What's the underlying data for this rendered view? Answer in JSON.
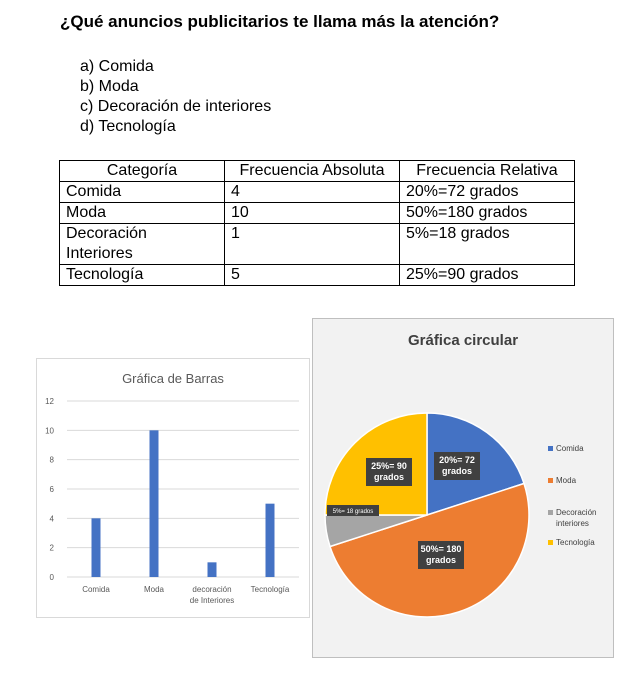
{
  "question": "¿Qué anuncios publicitarios te llama más la atención?",
  "options": [
    "a) Comida",
    "b) Moda",
    "c) Decoración de interiores",
    "d) Tecnología"
  ],
  "table": {
    "headers": [
      "Categoría",
      "Frecuencia Absoluta",
      "Frecuencia Relativa"
    ],
    "rows": [
      [
        "Comida",
        "4",
        "20%=72 grados"
      ],
      [
        "Moda",
        "10",
        "50%=180 grados"
      ],
      [
        "Decoración Interiores",
        "1",
        "5%=18 grados"
      ],
      [
        "Tecnología",
        "5",
        "25%=90 grados"
      ]
    ]
  },
  "colors": {
    "blue": "#4472c4",
    "orange": "#ed7d31",
    "gray": "#a5a5a5",
    "yellow": "#ffc000"
  },
  "chart_data": [
    {
      "type": "bar",
      "title": "Gráfica de Barras",
      "categories": [
        "Comida",
        "Moda",
        "decoración de Interiores",
        "Tecnología"
      ],
      "values": [
        4,
        10,
        1,
        5
      ],
      "ylim": [
        0,
        12
      ],
      "yticks": [
        "0",
        "2",
        "4",
        "6",
        "8",
        "10",
        "12"
      ],
      "grid": true,
      "legend": "none"
    },
    {
      "type": "pie",
      "title": "Gráfica circular",
      "labels": [
        "Comida",
        "Moda",
        "Decoración interiores",
        "Tecnología"
      ],
      "values": [
        20,
        50,
        5,
        25
      ],
      "data_labels": [
        "20%= 72 grados",
        "50%= 180 grados",
        "5%= 18 grados",
        "25%= 90 grados"
      ],
      "legend": "right"
    }
  ]
}
